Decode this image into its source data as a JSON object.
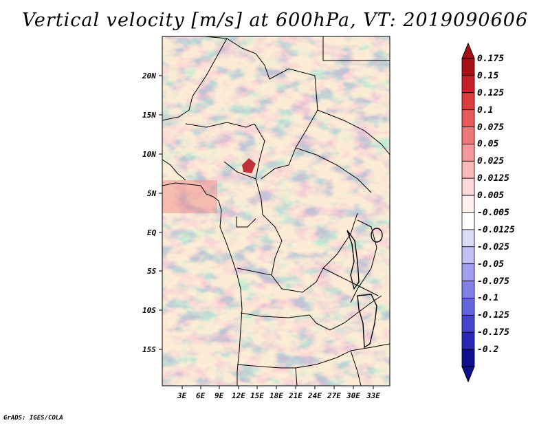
{
  "title": "Vertical velocity [m/s] at 600hPa, VT: 2019090606",
  "credit": "GrADS: IGES/COLA",
  "map": {
    "lat_labels": [
      "20N",
      "15N",
      "10N",
      "5N",
      "EQ",
      "5S",
      "10S",
      "15S"
    ],
    "lon_labels": [
      "3E",
      "6E",
      "9E",
      "12E",
      "15E",
      "18E",
      "21E",
      "24E",
      "27E",
      "30E",
      "33E"
    ]
  },
  "colorbar": {
    "levels": [
      "0.175",
      "0.15",
      "0.125",
      "0.1",
      "0.075",
      "0.05",
      "0.025",
      "0.0125",
      "0.005",
      "-0.005",
      "-0.0125",
      "-0.025",
      "-0.05",
      "-0.075",
      "-0.1",
      "-0.125",
      "-0.175",
      "-0.2"
    ],
    "colors": [
      "#a50f15",
      "#c8202a",
      "#dc3c3c",
      "#e65a5a",
      "#ee7878",
      "#f4999a",
      "#f8b8b8",
      "#fcd8d8",
      "#fff0f0",
      "#ffffff",
      "#dcdcfa",
      "#c0c0f4",
      "#a0a0ee",
      "#8080e6",
      "#6464dc",
      "#4646cc",
      "#2828b4",
      "#10108c"
    ]
  }
}
